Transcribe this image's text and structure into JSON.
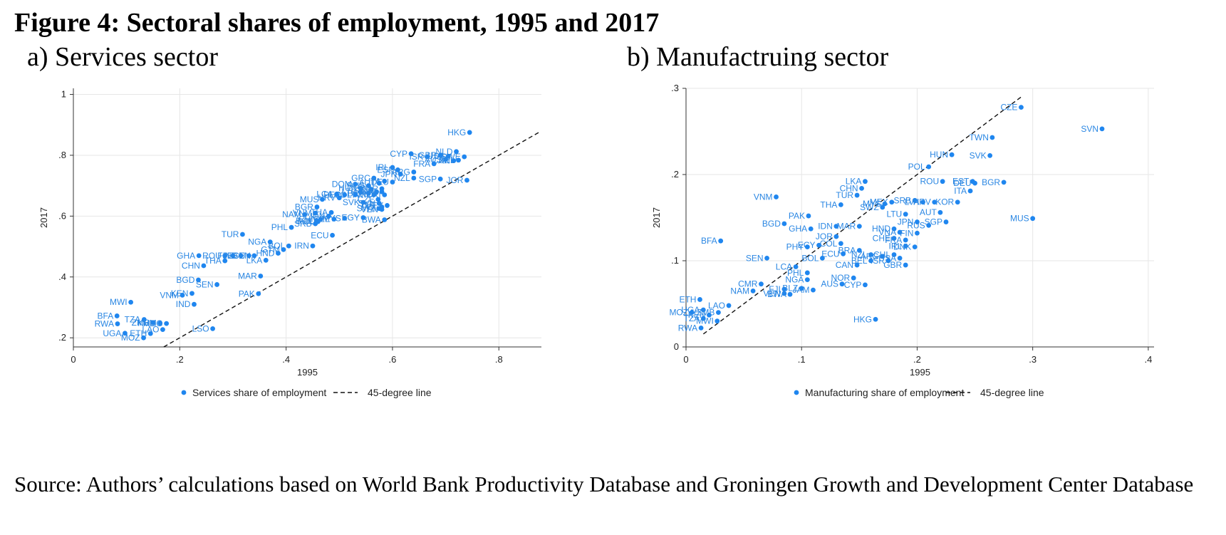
{
  "figure_title": "Figure 4: Sectoral shares of employment, 1995 and 2017",
  "panels": [
    {
      "title": "a)   Services sector"
    },
    {
      "title": "b)   Manufactruing sector"
    }
  ],
  "source": "Source: Authors’ calculations based on World Bank Productivity Database and Groningen Growth and Development Center Database",
  "colors": {
    "points": "#1f86ef",
    "labels": "#2b87e3",
    "line": "#111111",
    "grid": "#e6e6e6"
  },
  "chart_data": [
    {
      "type": "scatter",
      "title": "a)   Services sector",
      "xlabel": "1995",
      "ylabel": "2017",
      "xlim": [
        0,
        0.88
      ],
      "ylim": [
        0.17,
        1.02
      ],
      "xticks": [
        {
          "v": 0,
          "t": "0"
        },
        {
          "v": 0.2,
          "t": ".2"
        },
        {
          "v": 0.4,
          "t": ".4"
        },
        {
          "v": 0.6,
          "t": ".6"
        },
        {
          "v": 0.8,
          "t": ".8"
        }
      ],
      "yticks": [
        {
          "v": 0.2,
          "t": ".2"
        },
        {
          "v": 0.4,
          "t": ".4"
        },
        {
          "v": 0.6,
          "t": ".6"
        },
        {
          "v": 0.8,
          "t": ".8"
        },
        {
          "v": 1,
          "t": "1"
        }
      ],
      "grid": true,
      "legend": [
        {
          "kind": "marker",
          "label": "Services share of employment"
        },
        {
          "kind": "dash",
          "label": "45-degree line"
        }
      ],
      "ref_line": {
        "from": [
          0.17,
          0.17
        ],
        "to": [
          0.875,
          0.875
        ]
      },
      "points": [
        {
          "label": "HKG",
          "x": 0.745,
          "y": 0.875
        },
        {
          "label": "CYP",
          "x": 0.635,
          "y": 0.805
        },
        {
          "label": "NLD",
          "x": 0.72,
          "y": 0.812
        },
        {
          "label": "USA",
          "x": 0.705,
          "y": 0.797
        },
        {
          "label": "ISR",
          "x": 0.665,
          "y": 0.795
        },
        {
          "label": "GBR",
          "x": 0.69,
          "y": 0.8
        },
        {
          "label": "AUS",
          "x": 0.7,
          "y": 0.786
        },
        {
          "label": "CAN",
          "x": 0.715,
          "y": 0.782
        },
        {
          "label": "FRA",
          "x": 0.678,
          "y": 0.772
        },
        {
          "label": "SWE",
          "x": 0.735,
          "y": 0.795
        },
        {
          "label": "BEL",
          "x": 0.724,
          "y": 0.784
        },
        {
          "label": "IRL",
          "x": 0.6,
          "y": 0.76
        },
        {
          "label": "ESP",
          "x": 0.61,
          "y": 0.752
        },
        {
          "label": "JPN",
          "x": 0.615,
          "y": 0.738
        },
        {
          "label": "ARG",
          "x": 0.64,
          "y": 0.745
        },
        {
          "label": "NZL",
          "x": 0.64,
          "y": 0.725
        },
        {
          "label": "SGP",
          "x": 0.69,
          "y": 0.722
        },
        {
          "label": "JOR",
          "x": 0.74,
          "y": 0.718
        },
        {
          "label": "GRC",
          "x": 0.565,
          "y": 0.725
        },
        {
          "label": "DOM",
          "x": 0.53,
          "y": 0.705
        },
        {
          "label": "ITA",
          "x": 0.585,
          "y": 0.715
        },
        {
          "label": "DEU",
          "x": 0.6,
          "y": 0.712
        },
        {
          "label": "AUT",
          "x": 0.575,
          "y": 0.708
        },
        {
          "label": "RUS",
          "x": 0.555,
          "y": 0.7
        },
        {
          "label": "HUN",
          "x": 0.54,
          "y": 0.692
        },
        {
          "label": "EST",
          "x": 0.56,
          "y": 0.688
        },
        {
          "label": "LTU",
          "x": 0.54,
          "y": 0.68
        },
        {
          "label": "LVA",
          "x": 0.57,
          "y": 0.68
        },
        {
          "label": "BRA",
          "x": 0.555,
          "y": 0.675
        },
        {
          "label": "KOR",
          "x": 0.58,
          "y": 0.69
        },
        {
          "label": "TWN",
          "x": 0.565,
          "y": 0.67
        },
        {
          "label": "CHL",
          "x": 0.58,
          "y": 0.68
        },
        {
          "label": "COL",
          "x": 0.53,
          "y": 0.67
        },
        {
          "label": "PER",
          "x": 0.51,
          "y": 0.67
        },
        {
          "label": "LCA",
          "x": 0.495,
          "y": 0.672
        },
        {
          "label": "HRV",
          "x": 0.5,
          "y": 0.66
        },
        {
          "label": "CRI",
          "x": 0.585,
          "y": 0.67
        },
        {
          "label": "SVK",
          "x": 0.545,
          "y": 0.645
        },
        {
          "label": "CZE",
          "x": 0.573,
          "y": 0.655
        },
        {
          "label": "SVN",
          "x": 0.575,
          "y": 0.642
        },
        {
          "label": "POL",
          "x": 0.58,
          "y": 0.63
        },
        {
          "label": "BGR",
          "x": 0.458,
          "y": 0.63
        },
        {
          "label": "MUS",
          "x": 0.468,
          "y": 0.655
        },
        {
          "label": "VEN",
          "x": 0.58,
          "y": 0.622
        },
        {
          "label": "SWZ",
          "x": 0.575,
          "y": 0.625
        },
        {
          "label": "MYS",
          "x": 0.51,
          "y": 0.593
        },
        {
          "label": "NAM",
          "x": 0.435,
          "y": 0.605
        },
        {
          "label": "VNM",
          "x": 0.455,
          "y": 0.61
        },
        {
          "label": "THA",
          "x": 0.485,
          "y": 0.612
        },
        {
          "label": "BOL",
          "x": 0.457,
          "y": 0.585
        },
        {
          "label": "CHN",
          "x": 0.465,
          "y": 0.59
        },
        {
          "label": "IDN",
          "x": 0.48,
          "y": 0.6
        },
        {
          "label": "MEX",
          "x": 0.59,
          "y": 0.635
        },
        {
          "label": "BWA",
          "x": 0.585,
          "y": 0.588
        },
        {
          "label": "EGY",
          "x": 0.545,
          "y": 0.595
        },
        {
          "label": "PHL",
          "x": 0.41,
          "y": 0.563
        },
        {
          "label": "POL",
          "x": 0.46,
          "y": 0.582
        },
        {
          "label": "SRB",
          "x": 0.455,
          "y": 0.575
        },
        {
          "label": "CZE",
          "x": 0.49,
          "y": 0.59
        },
        {
          "label": "TUR",
          "x": 0.318,
          "y": 0.54
        },
        {
          "label": "ECU",
          "x": 0.487,
          "y": 0.537
        },
        {
          "label": "NGA",
          "x": 0.37,
          "y": 0.515
        },
        {
          "label": "BOL",
          "x": 0.405,
          "y": 0.502
        },
        {
          "label": "IRN",
          "x": 0.45,
          "y": 0.502
        },
        {
          "label": "GHA",
          "x": 0.236,
          "y": 0.47
        },
        {
          "label": "ROU",
          "x": 0.285,
          "y": 0.47
        },
        {
          "label": "FJI",
          "x": 0.3,
          "y": 0.47
        },
        {
          "label": "IND",
          "x": 0.315,
          "y": 0.47
        },
        {
          "label": "ECU",
          "x": 0.33,
          "y": 0.47
        },
        {
          "label": "SEN",
          "x": 0.34,
          "y": 0.47
        },
        {
          "label": "HND",
          "x": 0.385,
          "y": 0.478
        },
        {
          "label": "GTM",
          "x": 0.395,
          "y": 0.49
        },
        {
          "label": "THA",
          "x": 0.285,
          "y": 0.453
        },
        {
          "label": "LKA",
          "x": 0.362,
          "y": 0.455
        },
        {
          "label": "CHN",
          "x": 0.245,
          "y": 0.437
        },
        {
          "label": "MAR",
          "x": 0.352,
          "y": 0.403
        },
        {
          "label": "BGD",
          "x": 0.235,
          "y": 0.39
        },
        {
          "label": "SEN",
          "x": 0.27,
          "y": 0.375
        },
        {
          "label": "KEN",
          "x": 0.223,
          "y": 0.346
        },
        {
          "label": "VNM",
          "x": 0.205,
          "y": 0.34
        },
        {
          "label": "PAK",
          "x": 0.348,
          "y": 0.345
        },
        {
          "label": "IND",
          "x": 0.227,
          "y": 0.31
        },
        {
          "label": "MWI",
          "x": 0.108,
          "y": 0.317
        },
        {
          "label": "BFA",
          "x": 0.082,
          "y": 0.272
        },
        {
          "label": "TZA",
          "x": 0.133,
          "y": 0.26
        },
        {
          "label": "ZMB",
          "x": 0.15,
          "y": 0.25
        },
        {
          "label": "KHM",
          "x": 0.163,
          "y": 0.248
        },
        {
          "label": "MDG",
          "x": 0.175,
          "y": 0.247
        },
        {
          "label": "RWA",
          "x": 0.083,
          "y": 0.246
        },
        {
          "label": "LAO",
          "x": 0.168,
          "y": 0.227
        },
        {
          "label": "ETH",
          "x": 0.145,
          "y": 0.214
        },
        {
          "label": "UGA",
          "x": 0.097,
          "y": 0.215
        },
        {
          "label": "MOZ",
          "x": 0.132,
          "y": 0.2
        },
        {
          "label": "LSO",
          "x": 0.262,
          "y": 0.23
        }
      ]
    },
    {
      "type": "scatter",
      "title": "b)   Manufactruing sector",
      "xlabel": "1995",
      "ylabel": "2017",
      "xlim": [
        0,
        0.405
      ],
      "ylim": [
        0,
        0.3
      ],
      "xticks": [
        {
          "v": 0,
          "t": "0"
        },
        {
          "v": 0.1,
          "t": ".1"
        },
        {
          "v": 0.2,
          "t": ".2"
        },
        {
          "v": 0.3,
          "t": ".3"
        },
        {
          "v": 0.4,
          "t": ".4"
        }
      ],
      "yticks": [
        {
          "v": 0,
          "t": "0"
        },
        {
          "v": 0.1,
          "t": ".1"
        },
        {
          "v": 0.2,
          "t": ".2"
        },
        {
          "v": 0.3,
          "t": ".3"
        }
      ],
      "grid": true,
      "legend": [
        {
          "kind": "marker",
          "label": "Manufacturing share of employment"
        },
        {
          "kind": "dash",
          "label": "45-degree line"
        }
      ],
      "ref_line": {
        "from": [
          0.015,
          0.015
        ],
        "to": [
          0.29,
          0.29
        ]
      },
      "points": [
        {
          "label": "CZE",
          "x": 0.29,
          "y": 0.278
        },
        {
          "label": "SVN",
          "x": 0.36,
          "y": 0.253
        },
        {
          "label": "TWN",
          "x": 0.265,
          "y": 0.243
        },
        {
          "label": "HUN",
          "x": 0.23,
          "y": 0.223
        },
        {
          "label": "SVK",
          "x": 0.263,
          "y": 0.222
        },
        {
          "label": "POL",
          "x": 0.21,
          "y": 0.209
        },
        {
          "label": "ROU",
          "x": 0.222,
          "y": 0.192
        },
        {
          "label": "EST",
          "x": 0.248,
          "y": 0.192
        },
        {
          "label": "DEU",
          "x": 0.25,
          "y": 0.19
        },
        {
          "label": "BGR",
          "x": 0.275,
          "y": 0.191
        },
        {
          "label": "ITA",
          "x": 0.246,
          "y": 0.181
        },
        {
          "label": "LKA",
          "x": 0.155,
          "y": 0.192
        },
        {
          "label": "CHN",
          "x": 0.152,
          "y": 0.184
        },
        {
          "label": "TUR",
          "x": 0.148,
          "y": 0.176
        },
        {
          "label": "VNM",
          "x": 0.078,
          "y": 0.174
        },
        {
          "label": "THA",
          "x": 0.134,
          "y": 0.165
        },
        {
          "label": "MYS",
          "x": 0.172,
          "y": 0.166
        },
        {
          "label": "MEX",
          "x": 0.178,
          "y": 0.168
        },
        {
          "label": "SWZ",
          "x": 0.17,
          "y": 0.162
        },
        {
          "label": "SRB",
          "x": 0.198,
          "y": 0.17
        },
        {
          "label": "LVA",
          "x": 0.205,
          "y": 0.168
        },
        {
          "label": "HRV",
          "x": 0.215,
          "y": 0.168
        },
        {
          "label": "KOR",
          "x": 0.235,
          "y": 0.168
        },
        {
          "label": "AUT",
          "x": 0.22,
          "y": 0.156
        },
        {
          "label": "LTU",
          "x": 0.19,
          "y": 0.154
        },
        {
          "label": "PAK",
          "x": 0.106,
          "y": 0.152
        },
        {
          "label": "MUS",
          "x": 0.3,
          "y": 0.149
        },
        {
          "label": "JPN",
          "x": 0.2,
          "y": 0.145
        },
        {
          "label": "RUS",
          "x": 0.21,
          "y": 0.141
        },
        {
          "label": "SGP",
          "x": 0.225,
          "y": 0.145
        },
        {
          "label": "BGD",
          "x": 0.085,
          "y": 0.143
        },
        {
          "label": "IDN",
          "x": 0.13,
          "y": 0.14
        },
        {
          "label": "MAR",
          "x": 0.15,
          "y": 0.14
        },
        {
          "label": "GHA",
          "x": 0.108,
          "y": 0.137
        },
        {
          "label": "HND",
          "x": 0.18,
          "y": 0.137
        },
        {
          "label": "VNA",
          "x": 0.185,
          "y": 0.133
        },
        {
          "label": "FIN",
          "x": 0.2,
          "y": 0.132
        },
        {
          "label": "JOR",
          "x": 0.13,
          "y": 0.128
        },
        {
          "label": "CHE",
          "x": 0.18,
          "y": 0.126
        },
        {
          "label": "FRA",
          "x": 0.19,
          "y": 0.124
        },
        {
          "label": "BFA",
          "x": 0.03,
          "y": 0.123
        },
        {
          "label": "COL",
          "x": 0.134,
          "y": 0.12
        },
        {
          "label": "ECY",
          "x": 0.115,
          "y": 0.118
        },
        {
          "label": "PHY",
          "x": 0.105,
          "y": 0.116
        },
        {
          "label": "IRL",
          "x": 0.19,
          "y": 0.117
        },
        {
          "label": "DNK",
          "x": 0.198,
          "y": 0.116
        },
        {
          "label": "BRA",
          "x": 0.15,
          "y": 0.112
        },
        {
          "label": "ECU",
          "x": 0.136,
          "y": 0.108
        },
        {
          "label": "NZL",
          "x": 0.16,
          "y": 0.107
        },
        {
          "label": "ARG",
          "x": 0.17,
          "y": 0.105
        },
        {
          "label": "CHL",
          "x": 0.18,
          "y": 0.107
        },
        {
          "label": "USA",
          "x": 0.185,
          "y": 0.103
        },
        {
          "label": "BOL",
          "x": 0.118,
          "y": 0.103
        },
        {
          "label": "SEN",
          "x": 0.07,
          "y": 0.103
        },
        {
          "label": "BEL",
          "x": 0.16,
          "y": 0.1
        },
        {
          "label": "ISR",
          "x": 0.175,
          "y": 0.1
        },
        {
          "label": "CAN",
          "x": 0.148,
          "y": 0.095
        },
        {
          "label": "GBR",
          "x": 0.19,
          "y": 0.095
        },
        {
          "label": "LCA",
          "x": 0.095,
          "y": 0.093
        },
        {
          "label": "PHL",
          "x": 0.105,
          "y": 0.086
        },
        {
          "label": "NOR",
          "x": 0.145,
          "y": 0.08
        },
        {
          "label": "NGA",
          "x": 0.105,
          "y": 0.078
        },
        {
          "label": "AUS",
          "x": 0.135,
          "y": 0.073
        },
        {
          "label": "CYP",
          "x": 0.155,
          "y": 0.072
        },
        {
          "label": "CMR",
          "x": 0.065,
          "y": 0.073
        },
        {
          "label": "NAM",
          "x": 0.058,
          "y": 0.065
        },
        {
          "label": "FJI",
          "x": 0.085,
          "y": 0.067
        },
        {
          "label": "BLZ",
          "x": 0.1,
          "y": 0.068
        },
        {
          "label": "JAM",
          "x": 0.11,
          "y": 0.066
        },
        {
          "label": "VEN",
          "x": 0.085,
          "y": 0.062
        },
        {
          "label": "BWA",
          "x": 0.09,
          "y": 0.061
        },
        {
          "label": "ETH",
          "x": 0.012,
          "y": 0.055
        },
        {
          "label": "LAO",
          "x": 0.037,
          "y": 0.048
        },
        {
          "label": "UGA",
          "x": 0.015,
          "y": 0.043
        },
        {
          "label": "MOZ",
          "x": 0.005,
          "y": 0.04
        },
        {
          "label": "ZMB",
          "x": 0.028,
          "y": 0.04
        },
        {
          "label": "KEN",
          "x": 0.02,
          "y": 0.037
        },
        {
          "label": "TZA",
          "x": 0.015,
          "y": 0.033
        },
        {
          "label": "MWI",
          "x": 0.027,
          "y": 0.03
        },
        {
          "label": "RWA",
          "x": 0.013,
          "y": 0.022
        },
        {
          "label": "HKG",
          "x": 0.164,
          "y": 0.032
        }
      ]
    }
  ]
}
